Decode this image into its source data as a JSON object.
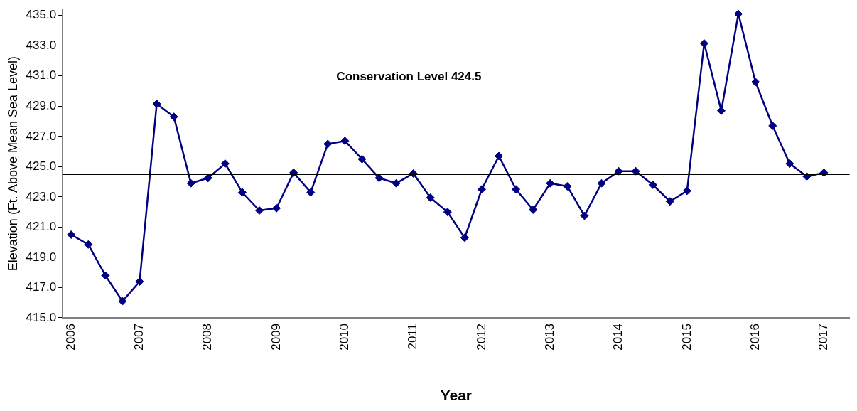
{
  "chart_data": {
    "type": "line",
    "xlabel": "Year",
    "ylabel": "Elevation (Ft. Above Mean Sea Level)",
    "categories": [
      "2006",
      null,
      null,
      null,
      "2007",
      null,
      null,
      null,
      "2008",
      null,
      null,
      null,
      "2009",
      null,
      null,
      null,
      "2010",
      null,
      null,
      null,
      "2011",
      null,
      null,
      null,
      "2012",
      null,
      null,
      null,
      "2013",
      null,
      null,
      null,
      "2014",
      null,
      null,
      null,
      "2015",
      null,
      null,
      null,
      "2016",
      null,
      null,
      null,
      "2017",
      null
    ],
    "series": [
      {
        "color": "#000080",
        "values": [
          420.5,
          419.85,
          417.8,
          416.1,
          417.4,
          429.15,
          428.3,
          423.9,
          424.25,
          425.2,
          423.3,
          422.1,
          422.25,
          424.6,
          423.3,
          426.5,
          426.7,
          425.5,
          424.25,
          423.9,
          424.55,
          422.95,
          422.0,
          420.3,
          423.5,
          425.7,
          423.5,
          422.15,
          423.9,
          423.7,
          421.75,
          423.9,
          424.7,
          424.7,
          423.8,
          422.7,
          423.4,
          433.15,
          428.7,
          435.1,
          430.6,
          427.7,
          425.2,
          424.35,
          424.6,
          null
        ]
      }
    ],
    "ylim": [
      415,
      435.4
    ],
    "yticks": [
      {
        "value": 415,
        "label": "415.0"
      },
      {
        "value": 417,
        "label": "417.0"
      },
      {
        "value": 419,
        "label": "419.0"
      },
      {
        "value": 421,
        "label": "421.0"
      },
      {
        "value": 423,
        "label": "423.0"
      },
      {
        "value": 425,
        "label": "425.0"
      },
      {
        "value": 427,
        "label": "427.0"
      },
      {
        "value": 429,
        "label": "429.0"
      },
      {
        "value": 431,
        "label": "431.0"
      },
      {
        "value": 433,
        "label": "433.0"
      },
      {
        "value": 435,
        "label": "435.0"
      }
    ],
    "ref_lines": [
      {
        "axis": "y",
        "value": 424.5,
        "color": "#000000"
      }
    ],
    "annotations": [
      "Conservation Level 424.5"
    ],
    "grid": false,
    "legend": false,
    "marker": "diamond",
    "line_style": "solid"
  }
}
